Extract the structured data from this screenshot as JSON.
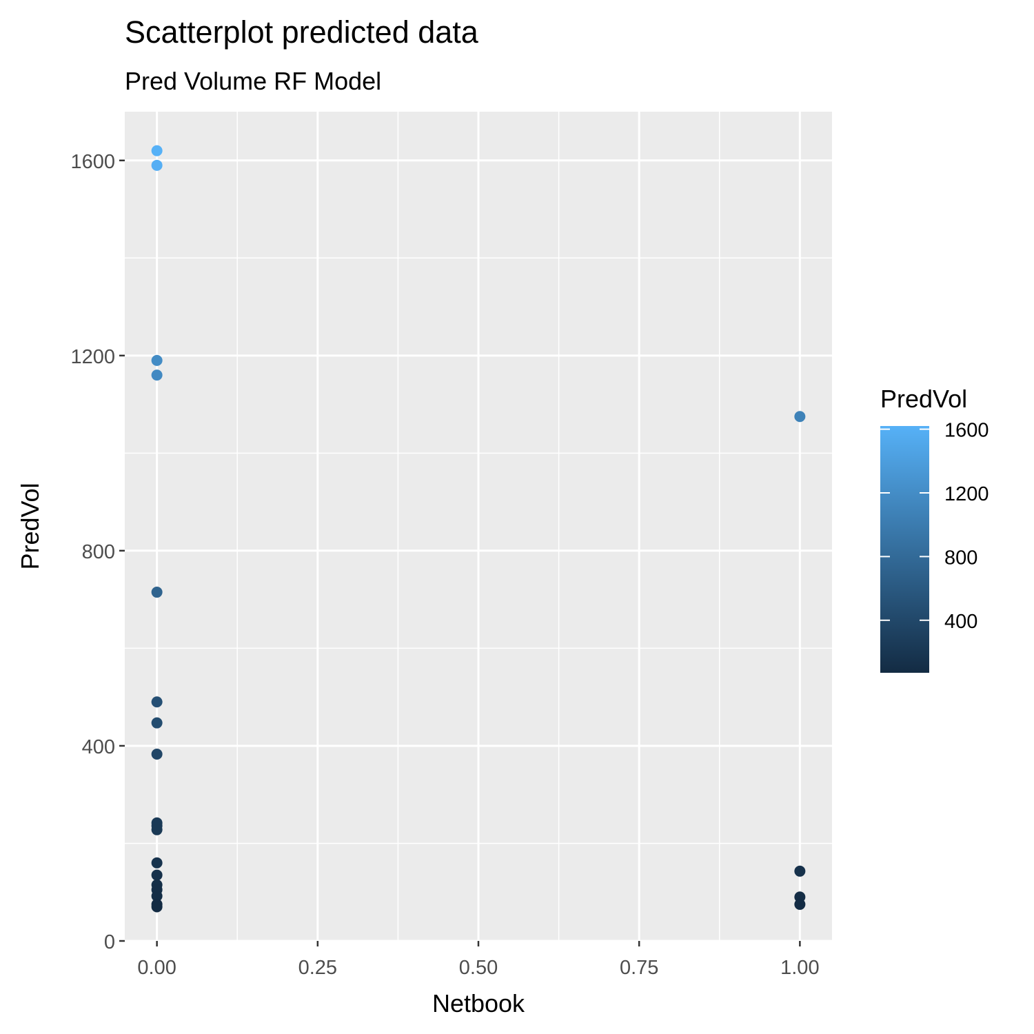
{
  "chart_data": {
    "type": "scatter",
    "title": "Scatterplot predicted data",
    "subtitle": "Pred Volume RF Model",
    "xlabel": "Netbook",
    "ylabel": "PredVol",
    "xlim": [
      -0.05,
      1.05
    ],
    "ylim": [
      0,
      1700
    ],
    "x_ticks": [
      0,
      0.25,
      0.5,
      0.75,
      1
    ],
    "x_tick_labels": [
      "0.00",
      "0.25",
      "0.50",
      "0.75",
      "1.00"
    ],
    "y_ticks": [
      0,
      400,
      800,
      1200,
      1600
    ],
    "y_tick_labels": [
      "0",
      "400",
      "800",
      "1200",
      "1600"
    ],
    "grid": true,
    "points": [
      {
        "x": 0,
        "y": 1620
      },
      {
        "x": 0,
        "y": 1590
      },
      {
        "x": 0,
        "y": 1190
      },
      {
        "x": 0,
        "y": 1160
      },
      {
        "x": 0,
        "y": 715
      },
      {
        "x": 0,
        "y": 490
      },
      {
        "x": 0,
        "y": 447
      },
      {
        "x": 0,
        "y": 383
      },
      {
        "x": 0,
        "y": 242
      },
      {
        "x": 0,
        "y": 236
      },
      {
        "x": 0,
        "y": 228
      },
      {
        "x": 0,
        "y": 160
      },
      {
        "x": 0,
        "y": 135
      },
      {
        "x": 0,
        "y": 115
      },
      {
        "x": 0,
        "y": 105
      },
      {
        "x": 0,
        "y": 92
      },
      {
        "x": 0,
        "y": 75
      },
      {
        "x": 0,
        "y": 70
      },
      {
        "x": 1,
        "y": 1075
      },
      {
        "x": 1,
        "y": 143
      },
      {
        "x": 1,
        "y": 90
      },
      {
        "x": 1,
        "y": 75
      }
    ],
    "legend": {
      "title": "PredVol",
      "placement": "right",
      "range": [
        70,
        1620
      ],
      "ticks": [
        400,
        800,
        1200,
        1600
      ],
      "tick_labels": [
        "400",
        "800",
        "1200",
        "1600"
      ],
      "low_color": "#132B43",
      "high_color": "#56B1F7"
    },
    "colors": {
      "panel": "#EBEBEB",
      "grid": "#FFFFFF"
    }
  }
}
